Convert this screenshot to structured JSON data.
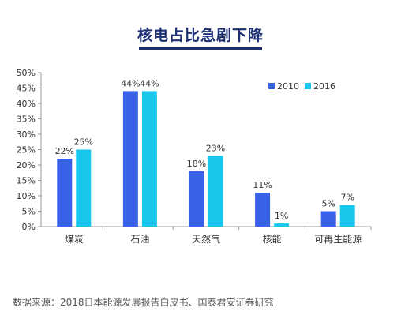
{
  "title": "核电占比急剧下降",
  "source": "数据来源：2018日本能源发展报告白皮书、国泰君安证券研究",
  "colors": {
    "2010": "#3a62e8",
    "2016": "#19c6ec",
    "axis": "#999999",
    "text": "#333333"
  },
  "chart_data": {
    "type": "bar",
    "categories": [
      "煤炭",
      "石油",
      "天然气",
      "核能",
      "可再生能源"
    ],
    "series": [
      {
        "name": "2010",
        "values": [
          22,
          44,
          18,
          11,
          5
        ],
        "labels": [
          "22%",
          "44%",
          "18%",
          "11%",
          "5%"
        ]
      },
      {
        "name": "2016",
        "values": [
          25,
          44,
          23,
          1,
          7
        ],
        "labels": [
          "25%",
          "44%",
          "23%",
          "1%",
          "7%"
        ]
      }
    ],
    "ylim": [
      0,
      50
    ],
    "yticks": [
      "0%",
      "5%",
      "10%",
      "15%",
      "20%",
      "25%",
      "30%",
      "35%",
      "40%",
      "45%",
      "50%"
    ],
    "legend_position": "top-right",
    "grid": false
  }
}
